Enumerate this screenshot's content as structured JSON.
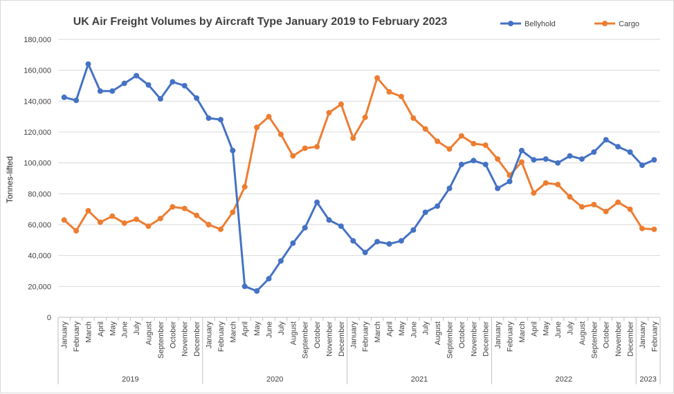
{
  "chart_data": {
    "type": "line",
    "title": "UK Air Freight Volumes by Aircraft Type January 2019 to February 2023",
    "xlabel": "",
    "ylabel": "Tonnes-lifted",
    "ylim": [
      0,
      180000
    ],
    "yticks": [
      "0",
      "20,000",
      "40,000",
      "60,000",
      "80,000",
      "100,000",
      "120,000",
      "140,000",
      "160,000",
      "180,000"
    ],
    "ytick_values": [
      0,
      20000,
      40000,
      60000,
      80000,
      100000,
      120000,
      140000,
      160000,
      180000
    ],
    "grid": true,
    "legend_position": "top-right",
    "months": [
      "January",
      "February",
      "March",
      "April",
      "May",
      "June",
      "July",
      "August",
      "September",
      "October",
      "November",
      "December",
      "January",
      "February",
      "March",
      "April",
      "May",
      "June",
      "July",
      "August",
      "September",
      "October",
      "November",
      "December",
      "January",
      "February",
      "March",
      "April",
      "May",
      "June",
      "July",
      "August",
      "September",
      "October",
      "November",
      "December",
      "January",
      "February",
      "March",
      "April",
      "May",
      "June",
      "July",
      "August",
      "September",
      "October",
      "November",
      "December",
      "January",
      "February"
    ],
    "years": [
      {
        "label": "2019",
        "count": 12
      },
      {
        "label": "2020",
        "count": 12
      },
      {
        "label": "2021",
        "count": 12
      },
      {
        "label": "2022",
        "count": 12
      },
      {
        "label": "2023",
        "count": 2
      }
    ],
    "series": [
      {
        "name": "Bellyhold",
        "color": "#4472c4",
        "values": [
          142500,
          140500,
          164000,
          146500,
          146500,
          151500,
          156500,
          150500,
          141500,
          152500,
          150000,
          142000,
          129000,
          128000,
          108000,
          20000,
          17000,
          25000,
          36500,
          48000,
          58000,
          74500,
          63000,
          59000,
          49500,
          42000,
          49000,
          47500,
          49500,
          56500,
          68000,
          72000,
          83500,
          99000,
          101500,
          99000,
          83500,
          88000,
          108000,
          102000,
          102500,
          100000,
          104500,
          102500,
          107000,
          115000,
          110500,
          107000,
          98500,
          102000
        ]
      },
      {
        "name": "Cargo",
        "color": "#ed7d31",
        "values": [
          63000,
          56000,
          69000,
          61500,
          65500,
          61000,
          63500,
          59000,
          64000,
          71500,
          70500,
          66000,
          60000,
          57000,
          68000,
          84500,
          123000,
          130000,
          118500,
          104500,
          109500,
          110500,
          132500,
          138000,
          116000,
          129500,
          155000,
          146000,
          143000,
          129000,
          122000,
          114000,
          109000,
          117500,
          112500,
          111500,
          102500,
          92000,
          100500,
          80500,
          87000,
          86000,
          78000,
          71500,
          73000,
          68500,
          74500,
          70000,
          57500,
          57000
        ]
      }
    ]
  }
}
